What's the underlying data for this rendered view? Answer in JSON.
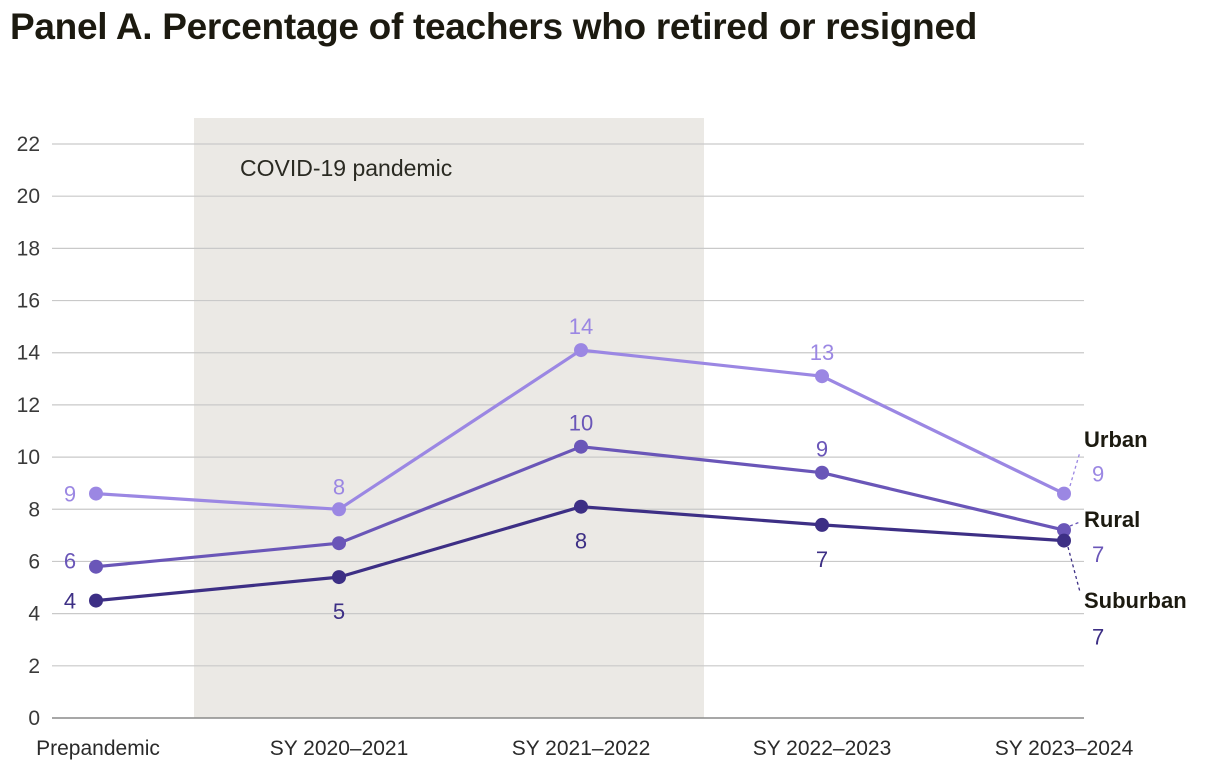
{
  "title": "Panel A. Percentage of teachers who retired or resigned",
  "chart_data": {
    "type": "line",
    "title": "Panel A. Percentage of teachers who retired or resigned",
    "categories": [
      "Prepandemic",
      "SY 2020–2021",
      "SY 2021–2022",
      "SY 2022–2023",
      "SY 2023–2024"
    ],
    "ylim": [
      0,
      22
    ],
    "yticks": [
      0,
      2,
      4,
      6,
      8,
      10,
      12,
      14,
      16,
      18,
      20,
      22
    ],
    "grid": true,
    "shaded_region": {
      "label": "COVID-19 pandemic",
      "from": "SY 2020–2021",
      "to": "SY 2021–2022",
      "color": "#ebe9e5"
    },
    "series": [
      {
        "name": "Urban",
        "color": "#9b87e3",
        "values": [
          8.6,
          8.0,
          14.1,
          13.1,
          8.6
        ],
        "data_labels": [
          "9",
          "8",
          "14",
          "13",
          "9"
        ]
      },
      {
        "name": "Rural",
        "color": "#6a56b8",
        "values": [
          5.8,
          6.7,
          10.4,
          9.4,
          7.2
        ],
        "data_labels": [
          "6",
          "",
          "10",
          "9",
          "7"
        ]
      },
      {
        "name": "Suburban",
        "color": "#3d2f85",
        "values": [
          4.5,
          5.4,
          8.1,
          7.4,
          6.8
        ],
        "data_labels": [
          "4",
          "5",
          "8",
          "7",
          "7"
        ]
      }
    ]
  }
}
